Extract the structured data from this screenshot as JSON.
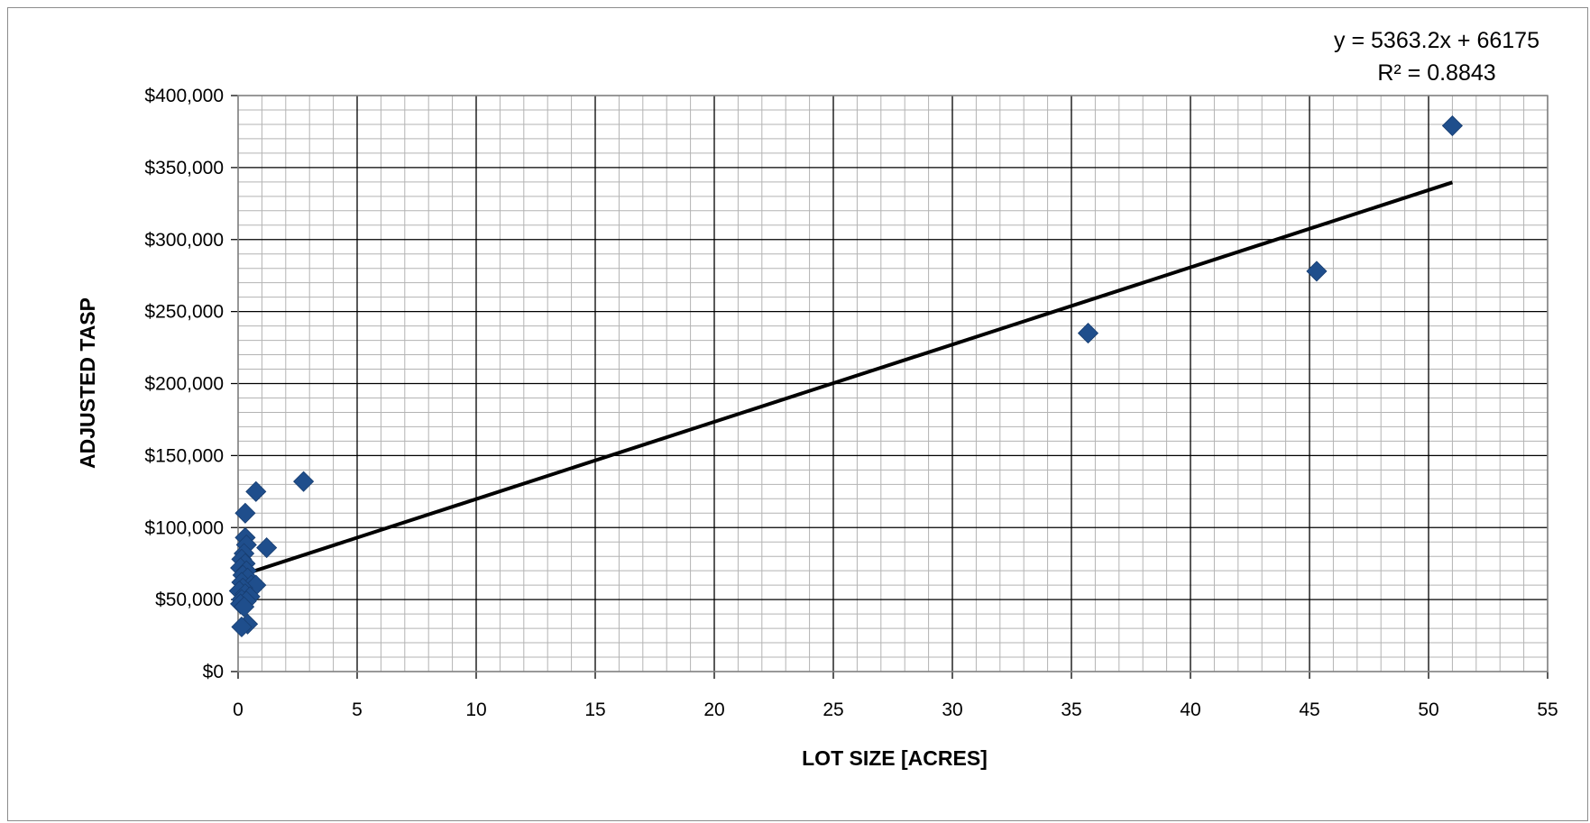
{
  "chart_data": {
    "type": "scatter",
    "title": "",
    "xlabel": "LOT SIZE [ACRES]",
    "ylabel": "ADJUSTED TASP",
    "xlim": [
      0,
      55
    ],
    "ylim": [
      0,
      400000
    ],
    "x_major_step": 5,
    "x_minor_step": 1,
    "y_major_step": 50000,
    "y_minor_step": 10000,
    "grid": true,
    "x_ticks": [
      "0",
      "5",
      "10",
      "15",
      "20",
      "25",
      "30",
      "35",
      "40",
      "45",
      "50",
      "55"
    ],
    "y_ticks": [
      "$0",
      "$50,000",
      "$100,000",
      "$150,000",
      "$200,000",
      "$250,000",
      "$300,000",
      "$350,000",
      "$400,000"
    ],
    "marker_color": "#1F4E8C",
    "trendline_color": "#000000",
    "points": [
      {
        "x": 51.0,
        "y": 379000
      },
      {
        "x": 45.3,
        "y": 278000
      },
      {
        "x": 35.7,
        "y": 235000
      },
      {
        "x": 2.75,
        "y": 132000
      },
      {
        "x": 0.75,
        "y": 125000
      },
      {
        "x": 0.3,
        "y": 110000
      },
      {
        "x": 0.3,
        "y": 93000
      },
      {
        "x": 0.35,
        "y": 88000
      },
      {
        "x": 1.2,
        "y": 86000
      },
      {
        "x": 0.25,
        "y": 82000
      },
      {
        "x": 0.15,
        "y": 78000
      },
      {
        "x": 0.3,
        "y": 75000
      },
      {
        "x": 0.1,
        "y": 72000
      },
      {
        "x": 0.35,
        "y": 70000
      },
      {
        "x": 0.2,
        "y": 67000
      },
      {
        "x": 0.4,
        "y": 65000
      },
      {
        "x": 0.15,
        "y": 62000
      },
      {
        "x": 0.55,
        "y": 60000
      },
      {
        "x": 0.75,
        "y": 60000
      },
      {
        "x": 0.2,
        "y": 58000
      },
      {
        "x": 0.05,
        "y": 56000
      },
      {
        "x": 0.3,
        "y": 54000
      },
      {
        "x": 0.5,
        "y": 52000
      },
      {
        "x": 0.15,
        "y": 50000
      },
      {
        "x": 0.35,
        "y": 49000
      },
      {
        "x": 0.1,
        "y": 47000
      },
      {
        "x": 0.25,
        "y": 45000
      },
      {
        "x": 0.4,
        "y": 33000
      },
      {
        "x": 0.15,
        "y": 31000
      }
    ],
    "trendline": {
      "slope": 5363.2,
      "intercept": 66175,
      "x_range": [
        0,
        51
      ],
      "equation": "y = 5363.2x + 66175",
      "r_squared": "R² = 0.8843"
    }
  }
}
